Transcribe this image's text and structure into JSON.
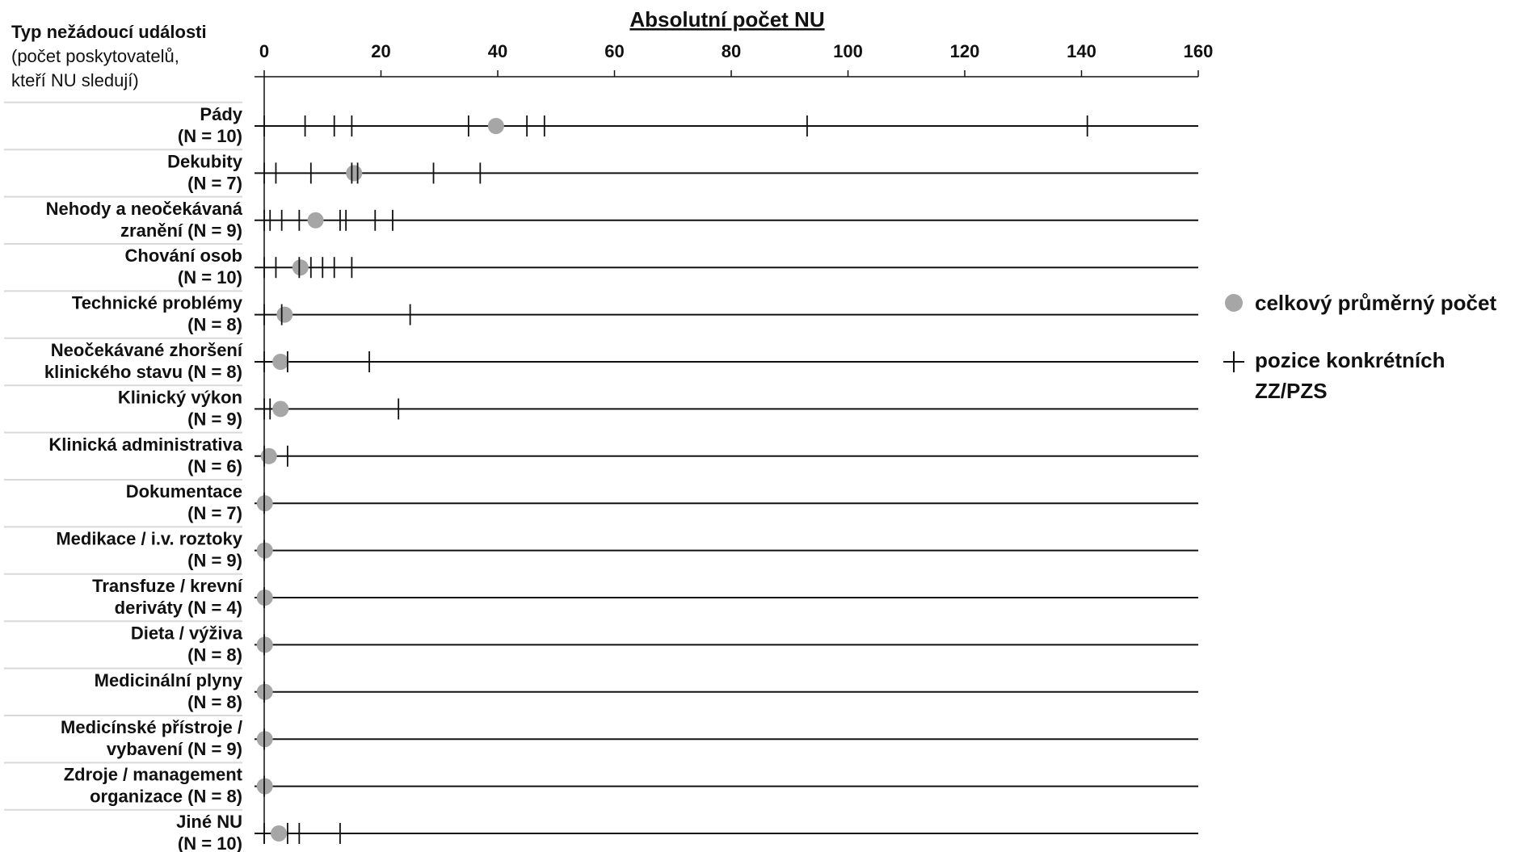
{
  "chart_data": {
    "type": "scatter",
    "title": "Absolutní počet NU",
    "ylabel_lines": [
      "Typ nežádoucí události",
      "(počet poskytovatelů,",
      "kteří NU sledují)"
    ],
    "xlim": [
      0,
      160
    ],
    "xticks": [
      "0",
      "20",
      "40",
      "60",
      "80",
      "100",
      "120",
      "140",
      "160"
    ],
    "legend": {
      "placement": "right",
      "mean_label": "celkový průměrný počet",
      "position_label_lines": [
        "pozice konkrétních",
        "ZZ/PZS"
      ]
    },
    "colors": {
      "mean_marker": "#a6a6a6",
      "line": "#111111",
      "separator": "#d9d9d9"
    },
    "categories": [
      {
        "name": [
          "Pády",
          "(N = 10)"
        ],
        "mean": 39.7,
        "positions": [
          0,
          7,
          12,
          15,
          35,
          45,
          48,
          93,
          141
        ]
      },
      {
        "name": [
          "Dekubity",
          "(N = 7)"
        ],
        "mean": 15.4,
        "positions": [
          0,
          2,
          8,
          15,
          16,
          29,
          37
        ]
      },
      {
        "name": [
          "Nehody a neočekávaná",
          "zranění (N = 9)"
        ],
        "mean": 8.8,
        "positions": [
          0,
          1,
          3,
          6,
          13,
          14,
          19,
          22
        ]
      },
      {
        "name": [
          "Chování osob",
          "(N = 10)"
        ],
        "mean": 6.2,
        "positions": [
          0,
          2,
          6,
          8,
          10,
          12,
          15
        ]
      },
      {
        "name": [
          "Technické problémy",
          "(N = 8)"
        ],
        "mean": 3.5,
        "positions": [
          0,
          3,
          25
        ]
      },
      {
        "name": [
          "Neočekávané zhoršení",
          "klinického stavu (N = 8)"
        ],
        "mean": 2.8,
        "positions": [
          0,
          4,
          18
        ]
      },
      {
        "name": [
          "Klinický výkon",
          "(N = 9)"
        ],
        "mean": 2.8,
        "positions": [
          0,
          1,
          23
        ]
      },
      {
        "name": [
          "Klinická administrativa",
          "(N = 6)"
        ],
        "mean": 0.8,
        "positions": [
          0,
          4
        ]
      },
      {
        "name": [
          "Dokumentace",
          "(N = 7)"
        ],
        "mean": 0.1,
        "positions": [
          0
        ]
      },
      {
        "name": [
          "Medikace / i.v. roztoky",
          "(N = 9)"
        ],
        "mean": 0.1,
        "positions": [
          0
        ]
      },
      {
        "name": [
          "Transfuze / krevní",
          "deriváty (N = 4)"
        ],
        "mean": 0.1,
        "positions": [
          0
        ]
      },
      {
        "name": [
          "Dieta / výživa",
          "(N = 8)"
        ],
        "mean": 0.1,
        "positions": [
          0
        ]
      },
      {
        "name": [
          "Medicinální plyny",
          "(N = 8)"
        ],
        "mean": 0.1,
        "positions": [
          0
        ]
      },
      {
        "name": [
          "Medicínské přístroje /",
          "vybavení (N = 9)"
        ],
        "mean": 0.1,
        "positions": [
          0
        ]
      },
      {
        "name": [
          "Zdroje / management",
          "organizace (N = 8)"
        ],
        "mean": 0.1,
        "positions": [
          0
        ]
      },
      {
        "name": [
          "Jiné NU",
          "(N = 10)"
        ],
        "mean": 2.5,
        "positions": [
          0,
          4,
          6,
          13
        ]
      }
    ]
  }
}
